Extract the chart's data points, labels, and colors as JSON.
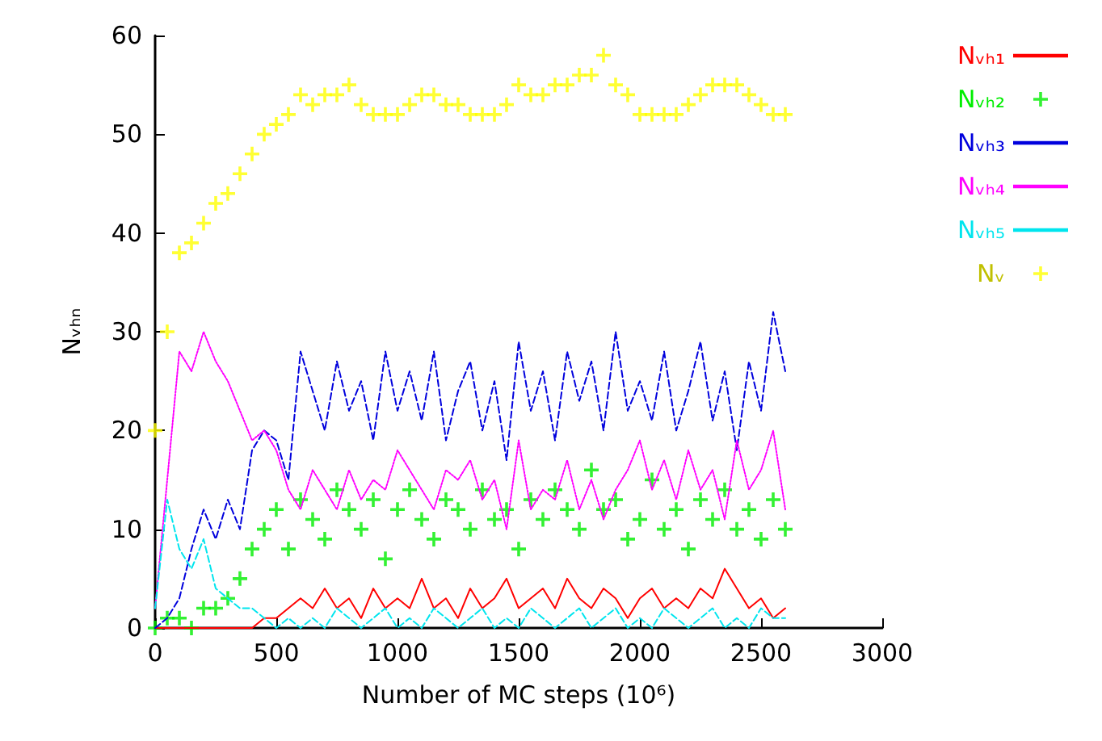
{
  "chart_data": {
    "type": "line",
    "xlabel": "Number of MC steps (10⁶)",
    "ylabel": "Nᵥₕₙ",
    "x": [
      0,
      50,
      100,
      150,
      200,
      250,
      300,
      350,
      400,
      450,
      500,
      550,
      600,
      650,
      700,
      750,
      800,
      850,
      900,
      950,
      1000,
      1050,
      1100,
      1150,
      1200,
      1250,
      1300,
      1350,
      1400,
      1450,
      1500,
      1550,
      1600,
      1650,
      1700,
      1750,
      1800,
      1850,
      1900,
      1950,
      2000,
      2050,
      2100,
      2150,
      2200,
      2250,
      2300,
      2350,
      2400,
      2450,
      2500,
      2550,
      2600
    ],
    "series": [
      {
        "name": "Nᵥₕ₁",
        "line_style": "solid",
        "color": "#ff0000",
        "values": [
          0,
          0,
          0,
          0,
          0,
          0,
          0,
          0,
          0,
          1,
          1,
          2,
          3,
          2,
          4,
          2,
          3,
          1,
          4,
          2,
          3,
          2,
          5,
          2,
          3,
          1,
          4,
          2,
          3,
          5,
          2,
          3,
          4,
          2,
          5,
          3,
          2,
          4,
          3,
          1,
          3,
          4,
          2,
          3,
          2,
          4,
          3,
          6,
          4,
          2,
          3,
          1,
          2
        ]
      },
      {
        "name": "Nᵥₕ₂",
        "type": "scatter",
        "marker": "cross",
        "color": "#00ee00",
        "values": [
          0,
          1,
          1,
          0,
          2,
          2,
          3,
          5,
          8,
          10,
          12,
          8,
          13,
          11,
          9,
          14,
          12,
          10,
          13,
          7,
          12,
          14,
          11,
          9,
          13,
          12,
          10,
          14,
          11,
          12,
          8,
          13,
          11,
          14,
          12,
          10,
          16,
          12,
          13,
          9,
          11,
          15,
          10,
          12,
          8,
          13,
          11,
          14,
          10,
          12,
          9,
          13,
          10
        ]
      },
      {
        "name": "Nᵥₕ₃",
        "line_style": "dashed",
        "color": "#0000dd",
        "values": [
          0,
          1,
          3,
          8,
          12,
          9,
          13,
          10,
          18,
          20,
          19,
          15,
          28,
          24,
          20,
          27,
          22,
          25,
          19,
          28,
          22,
          26,
          21,
          28,
          19,
          24,
          27,
          20,
          25,
          17,
          29,
          22,
          26,
          19,
          28,
          23,
          27,
          20,
          30,
          22,
          25,
          21,
          28,
          20,
          24,
          29,
          21,
          26,
          18,
          27,
          22,
          32,
          26
        ]
      },
      {
        "name": "Nᵥₕ₄",
        "line_style": "dotted",
        "color": "#ff00ff",
        "values": [
          2,
          15,
          28,
          26,
          30,
          27,
          25,
          22,
          19,
          20,
          18,
          14,
          12,
          16,
          14,
          12,
          16,
          13,
          15,
          14,
          18,
          16,
          14,
          12,
          16,
          15,
          17,
          13,
          15,
          10,
          19,
          12,
          14,
          13,
          17,
          12,
          15,
          11,
          14,
          16,
          19,
          14,
          17,
          13,
          18,
          14,
          16,
          11,
          19,
          14,
          16,
          20,
          12
        ]
      },
      {
        "name": "Nᵥₕ₅",
        "line_style": "dashed",
        "color": "#00e5ee",
        "values": [
          2,
          13,
          8,
          6,
          9,
          4,
          3,
          2,
          2,
          1,
          0,
          1,
          0,
          1,
          0,
          2,
          1,
          0,
          1,
          2,
          0,
          1,
          0,
          2,
          1,
          0,
          1,
          2,
          0,
          1,
          0,
          2,
          1,
          0,
          1,
          2,
          0,
          1,
          2,
          0,
          1,
          0,
          2,
          1,
          0,
          1,
          2,
          0,
          1,
          0,
          2,
          1,
          1
        ]
      },
      {
        "name": "Nᵥ",
        "type": "scatter",
        "marker": "cross",
        "color": "#ffff00",
        "values": [
          20,
          30,
          38,
          39,
          41,
          43,
          44,
          46,
          48,
          50,
          51,
          52,
          54,
          53,
          54,
          54,
          55,
          53,
          52,
          52,
          52,
          53,
          54,
          54,
          53,
          53,
          52,
          52,
          52,
          53,
          55,
          54,
          54,
          55,
          55,
          56,
          56,
          58,
          55,
          54,
          52,
          52,
          52,
          52,
          53,
          54,
          55,
          55,
          55,
          54,
          53,
          52,
          52
        ]
      }
    ],
    "xlim": [
      0,
      3000
    ],
    "xticks": [
      0,
      500,
      1000,
      1500,
      2000,
      2500,
      3000
    ],
    "ylim": [
      0,
      60
    ],
    "yticks": [
      0,
      10,
      20,
      30,
      40,
      50,
      60
    ],
    "legend": "top right"
  }
}
